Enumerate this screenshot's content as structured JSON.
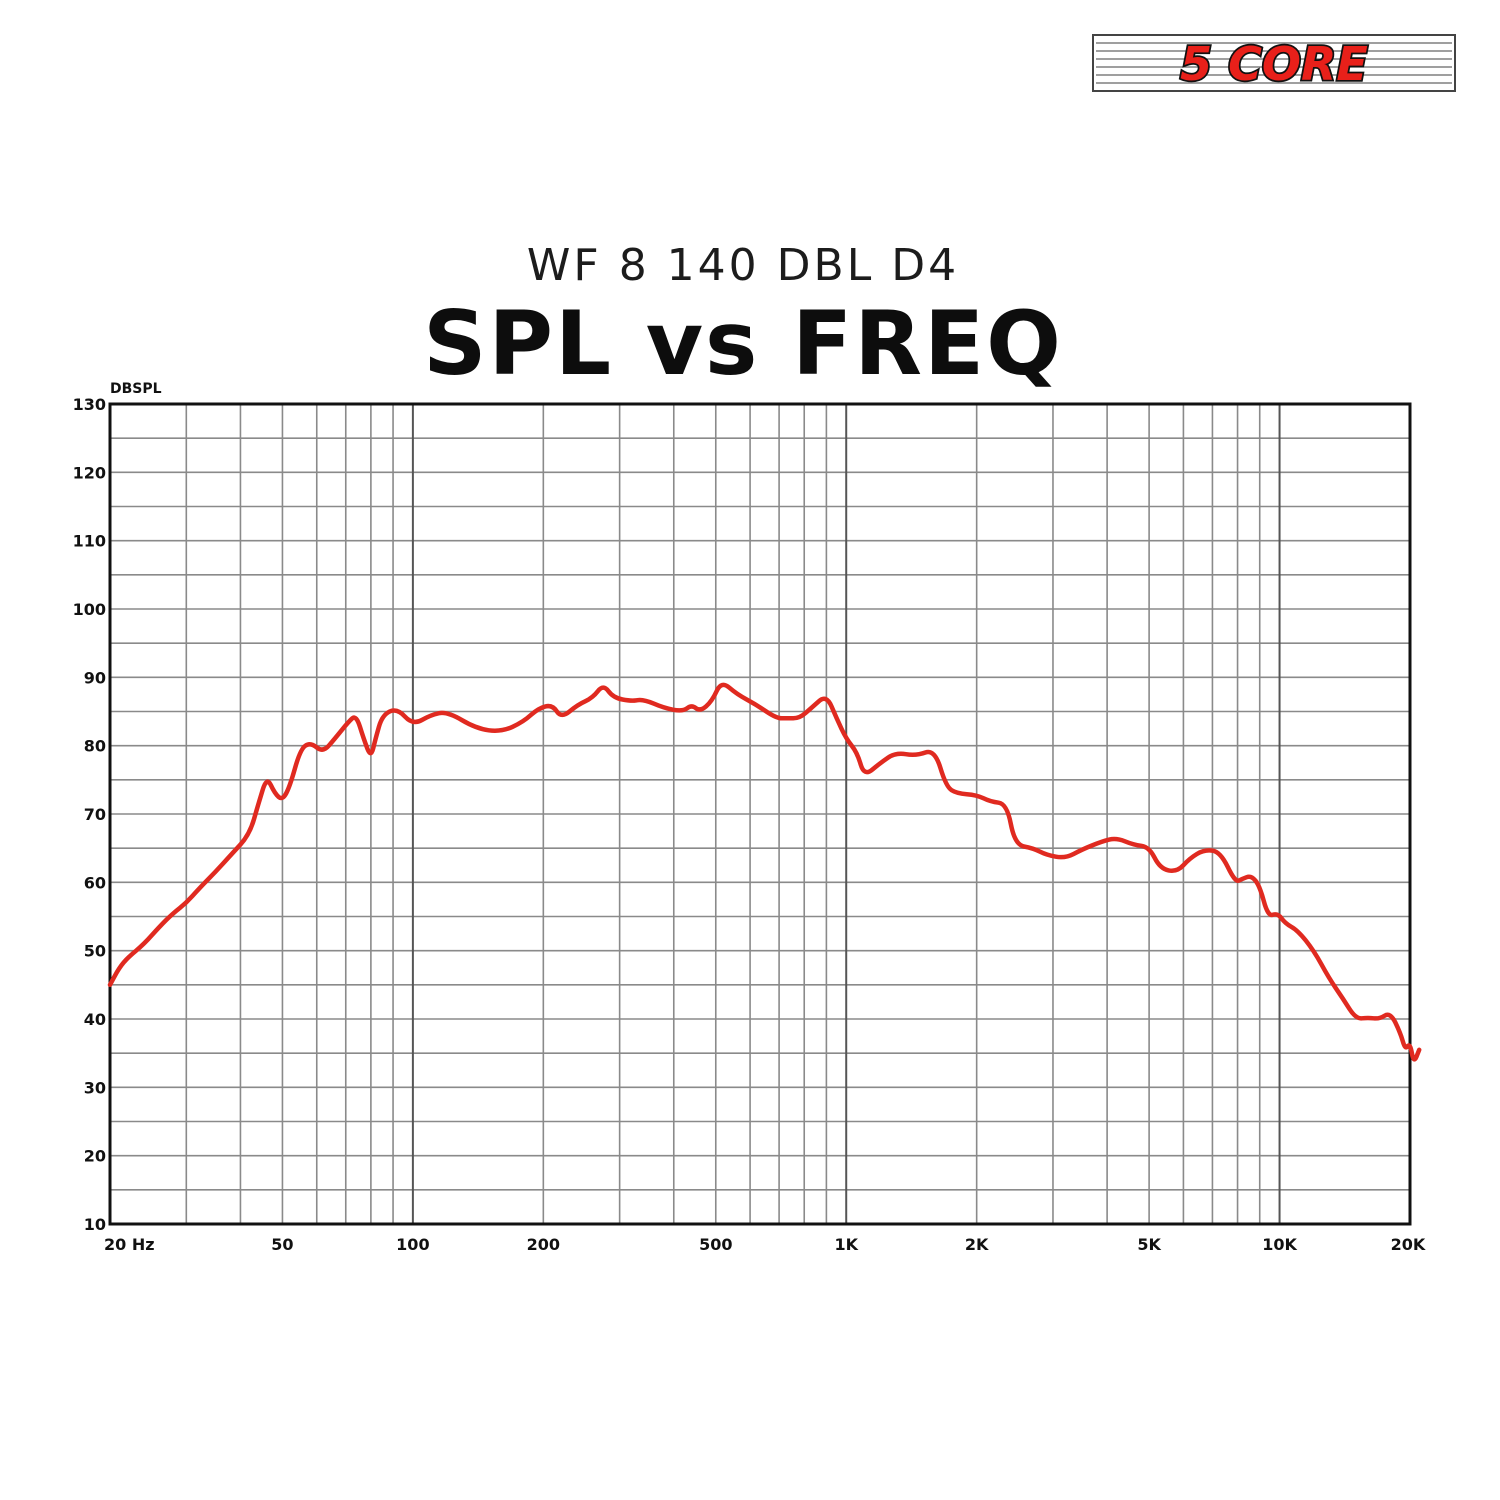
{
  "brand": {
    "logo_text": "5 CORE",
    "logo_color": "#e8201a"
  },
  "chart_data": {
    "type": "line",
    "subtitle": "WF 8 140 DBL D4",
    "title": "SPL vs FREQ",
    "ylabel": "DBSPL",
    "xlabel": "",
    "x_scale": "log",
    "xlim": [
      20,
      20000
    ],
    "ylim": [
      10,
      130
    ],
    "grid": true,
    "line_color": "#e02a20",
    "y_ticks": [
      10,
      20,
      30,
      40,
      50,
      60,
      70,
      80,
      90,
      100,
      110,
      120,
      130
    ],
    "x_ticks": [
      {
        "value": 20,
        "label": "20 Hz"
      },
      {
        "value": 50,
        "label": "50"
      },
      {
        "value": 100,
        "label": "100"
      },
      {
        "value": 200,
        "label": "200"
      },
      {
        "value": 500,
        "label": "500"
      },
      {
        "value": 1000,
        "label": "1K"
      },
      {
        "value": 2000,
        "label": "2K"
      },
      {
        "value": 5000,
        "label": "5K"
      },
      {
        "value": 10000,
        "label": "10K"
      },
      {
        "value": 20000,
        "label": "20K"
      }
    ],
    "series": [
      {
        "points": [
          [
            20,
            45
          ],
          [
            21,
            47.5
          ],
          [
            22,
            49
          ],
          [
            24,
            51
          ],
          [
            26,
            53.5
          ],
          [
            28,
            55.5
          ],
          [
            30,
            57
          ],
          [
            32,
            59
          ],
          [
            35,
            61.5
          ],
          [
            38,
            64
          ],
          [
            42,
            67
          ],
          [
            44,
            71.5
          ],
          [
            46,
            75.5
          ],
          [
            48,
            73
          ],
          [
            50,
            72
          ],
          [
            52,
            74
          ],
          [
            55,
            79.5
          ],
          [
            58,
            80.5
          ],
          [
            62,
            79
          ],
          [
            66,
            81
          ],
          [
            71,
            83.5
          ],
          [
            74,
            84.5
          ],
          [
            77,
            81
          ],
          [
            80,
            78.2
          ],
          [
            82,
            81
          ],
          [
            85,
            84.5
          ],
          [
            92,
            85.5
          ],
          [
            100,
            83
          ],
          [
            110,
            84.5
          ],
          [
            120,
            85
          ],
          [
            140,
            82.5
          ],
          [
            160,
            82
          ],
          [
            180,
            83.5
          ],
          [
            195,
            85.5
          ],
          [
            210,
            86
          ],
          [
            220,
            84
          ],
          [
            240,
            86
          ],
          [
            260,
            87
          ],
          [
            275,
            89
          ],
          [
            290,
            87
          ],
          [
            320,
            86.5
          ],
          [
            340,
            86.8
          ],
          [
            380,
            85.5
          ],
          [
            420,
            85
          ],
          [
            440,
            86
          ],
          [
            460,
            85
          ],
          [
            490,
            86.5
          ],
          [
            515,
            89.5
          ],
          [
            560,
            87.5
          ],
          [
            620,
            86
          ],
          [
            690,
            84
          ],
          [
            730,
            84
          ],
          [
            780,
            84
          ],
          [
            830,
            85.5
          ],
          [
            900,
            87.5
          ],
          [
            950,
            84
          ],
          [
            1000,
            81
          ],
          [
            1060,
            79
          ],
          [
            1100,
            75.5
          ],
          [
            1200,
            77.5
          ],
          [
            1300,
            79
          ],
          [
            1450,
            78.5
          ],
          [
            1600,
            79.5
          ],
          [
            1700,
            74
          ],
          [
            1800,
            73
          ],
          [
            2000,
            72.8
          ],
          [
            2150,
            71.8
          ],
          [
            2350,
            71.5
          ],
          [
            2450,
            65.5
          ],
          [
            2700,
            65
          ],
          [
            2900,
            64
          ],
          [
            3200,
            63.5
          ],
          [
            3500,
            64.8
          ],
          [
            3900,
            66
          ],
          [
            4200,
            66.5
          ],
          [
            4600,
            65.5
          ],
          [
            5000,
            65.2
          ],
          [
            5300,
            62
          ],
          [
            5800,
            61.5
          ],
          [
            6200,
            63.5
          ],
          [
            6700,
            64.8
          ],
          [
            7300,
            64.5
          ],
          [
            7900,
            60
          ],
          [
            8200,
            60.5
          ],
          [
            8600,
            61
          ],
          [
            9000,
            59.5
          ],
          [
            9400,
            55
          ],
          [
            9900,
            55.5
          ],
          [
            10300,
            54
          ],
          [
            11000,
            53
          ],
          [
            12000,
            50
          ],
          [
            13000,
            46
          ],
          [
            14000,
            43
          ],
          [
            15000,
            40
          ],
          [
            16000,
            40.2
          ],
          [
            17000,
            40
          ],
          [
            18000,
            41
          ],
          [
            19000,
            38
          ],
          [
            19500,
            35.5
          ],
          [
            20000,
            36.5
          ],
          [
            20400,
            33.5
          ],
          [
            21000,
            35.5
          ]
        ]
      }
    ]
  }
}
